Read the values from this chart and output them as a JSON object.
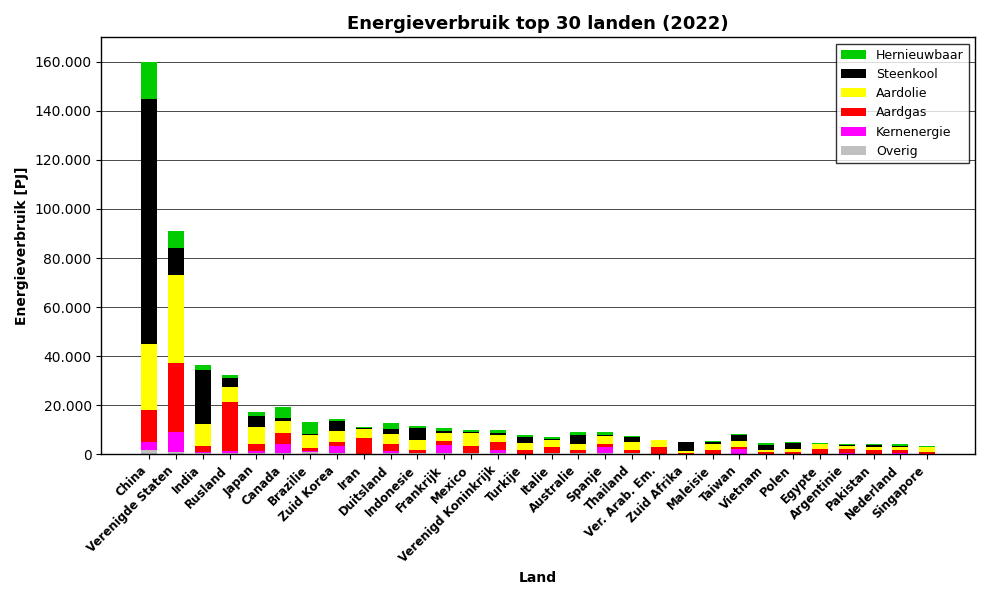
{
  "countries": [
    "China",
    "Verenigde Staten",
    "India",
    "Rusland",
    "Japan",
    "Canada",
    "Brazilie",
    "Zuid Korea",
    "Iran",
    "Duitsland",
    "Indonesie",
    "Frankrijk",
    "Mexico",
    "Verenigd Koninkrijk",
    "Turkije",
    "Italie",
    "Australie",
    "Spanje",
    "Thailand",
    "Ver. Arab. Em.",
    "Zuid Afrika",
    "Maleisie",
    "Taiwan",
    "Vietnam",
    "Polen",
    "Egypte",
    "Argentinie",
    "Pakistan",
    "Nederland",
    "Singapore"
  ],
  "overig": [
    1500,
    1000,
    500,
    500,
    500,
    500,
    1000,
    300,
    200,
    400,
    300,
    300,
    300,
    300,
    200,
    300,
    300,
    300,
    300,
    100,
    100,
    200,
    200,
    200,
    200,
    100,
    200,
    100,
    200,
    100
  ],
  "kernenergie": [
    3500,
    8000,
    400,
    700,
    600,
    3500,
    200,
    3000,
    0,
    800,
    0,
    3500,
    200,
    1500,
    0,
    0,
    0,
    2500,
    0,
    0,
    0,
    0,
    2000,
    0,
    0,
    0,
    300,
    0,
    100,
    0
  ],
  "aardgas": [
    13000,
    28000,
    2500,
    20000,
    3000,
    4500,
    1500,
    1800,
    6500,
    3000,
    1500,
    1500,
    3000,
    3000,
    1500,
    2500,
    1400,
    1500,
    1500,
    3000,
    200,
    1500,
    800,
    500,
    600,
    2000,
    1500,
    1500,
    1200,
    800
  ],
  "aardolie": [
    27000,
    36000,
    9000,
    6000,
    7000,
    5000,
    5000,
    4500,
    3500,
    4000,
    4000,
    3500,
    5000,
    3000,
    3000,
    3000,
    2500,
    3000,
    3000,
    2500,
    1000,
    2500,
    2500,
    1000,
    1200,
    2000,
    1500,
    1500,
    1500,
    2000
  ],
  "steenkool": [
    100000,
    11000,
    22000,
    4000,
    4500,
    1200,
    600,
    4000,
    500,
    2000,
    5000,
    800,
    500,
    800,
    2500,
    400,
    3500,
    400,
    2000,
    100,
    3500,
    800,
    2500,
    2000,
    2500,
    200,
    100,
    500,
    300,
    100
  ],
  "hernieuwbaar": [
    15000,
    7000,
    2000,
    1000,
    1500,
    4500,
    5000,
    800,
    500,
    2500,
    600,
    1200,
    1000,
    1200,
    800,
    1000,
    1500,
    1500,
    800,
    200,
    200,
    500,
    300,
    800,
    500,
    200,
    400,
    400,
    700,
    200
  ],
  "colors": {
    "overig": "#c0c0c0",
    "kernenergie": "#ff00ff",
    "aardgas": "#ff0000",
    "aardolie": "#ffff00",
    "steenkool": "#000000",
    "hernieuwbaar": "#00cc00"
  },
  "title": "Energieverbruik top 30 landen (2022)",
  "ylabel": "Energieverbruik [PJ]",
  "xlabel": "Land",
  "ylim": [
    0,
    170000
  ],
  "yticks": [
    0,
    20000,
    40000,
    60000,
    80000,
    100000,
    120000,
    140000,
    160000
  ],
  "legend_labels_ordered": [
    "Hernieuwbaar",
    "Steenkool",
    "Aardolie",
    "Aardgas",
    "Kernenergie",
    "Overig"
  ],
  "legend_keys_ordered": [
    "hernieuwbaar",
    "steenkool",
    "aardolie",
    "aardgas",
    "kernenergie",
    "overig"
  ],
  "background_color": "#ffffff"
}
